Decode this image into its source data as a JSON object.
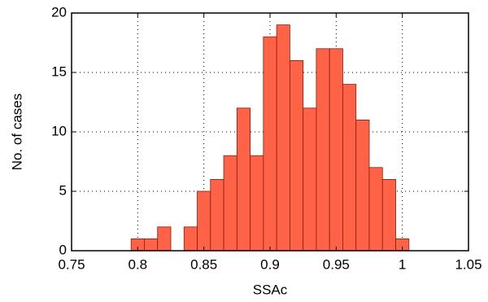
{
  "chart_data": {
    "type": "histogram",
    "xlabel": "SSAc",
    "ylabel": "No. of cases",
    "bins": [
      0.755,
      0.765,
      0.775,
      0.785,
      0.795,
      0.805,
      0.815,
      0.825,
      0.835,
      0.845,
      0.855,
      0.865,
      0.875,
      0.885,
      0.895,
      0.905,
      0.915,
      0.925,
      0.935,
      0.945,
      0.955,
      0.965,
      0.975,
      0.985,
      0.995,
      1.005
    ],
    "values": [
      0,
      0,
      0,
      0,
      1,
      1,
      2,
      0,
      2,
      5,
      6,
      8,
      12,
      8,
      18,
      19,
      16,
      12,
      17,
      17,
      14,
      11,
      7,
      6,
      1
    ],
    "color": "#ff6347",
    "xlim": [
      0.75,
      1.05
    ],
    "xticks": [
      0.75,
      0.8,
      0.85,
      0.9,
      0.95,
      1,
      1.05
    ],
    "ylim": [
      0,
      20
    ],
    "yticks": [
      0,
      5,
      10,
      15,
      20
    ],
    "grid": true
  }
}
